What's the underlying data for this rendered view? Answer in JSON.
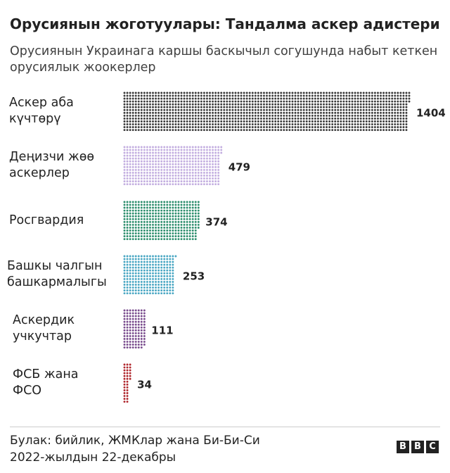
{
  "title": "Орусиянын жоготуулары: Тандалма аскер адистери",
  "subtitle": "Орусиянын Украинага каршы баскычыл согушунда набыт кеткен орусиялык жоокерлер",
  "source_line1": "Булак: бийлик, ЖМКлар жана Би-Би-Си",
  "source_line2": "2022-жылдын 22-декабры",
  "logo": [
    "B",
    "B",
    "C"
  ],
  "chart_data": {
    "type": "bar",
    "orientation": "horizontal",
    "style": "dot-matrix",
    "title": "Орусиянын жоготуулары: Тандалма аскер адистери",
    "subtitle": "Орусиянын Украинага каршы баскычыл согушунда набыт кеткен орусиялык жоокерлер",
    "categories": [
      "Аскер аба күчтөрү",
      "Деңизчи жөө аскерлер",
      "Росгвардия",
      "Башкы чалгын башкармалыгы",
      "Аскердик учкучтар",
      "ФСБ жана ФСО"
    ],
    "label_lines": [
      [
        "Аскер аба",
        "күчтөрү"
      ],
      [
        "Деңизчи жөө",
        "аскерлер"
      ],
      [
        "Росгвардия"
      ],
      [
        "Башкы чалгын",
        "башкармалыгы"
      ],
      [
        "Аскердик",
        "учкучтар"
      ],
      [
        "ФСБ жана",
        "ФСО"
      ]
    ],
    "values": [
      1404,
      479,
      374,
      253,
      111,
      34
    ],
    "value_labels": [
      "1404",
      "479",
      "374",
      "253",
      "111",
      "34"
    ],
    "colors": [
      "#3a3a3a",
      "#c3aee0",
      "#2e8f6e",
      "#4aa7c3",
      "#7a4d8e",
      "#b0282e"
    ]
  }
}
